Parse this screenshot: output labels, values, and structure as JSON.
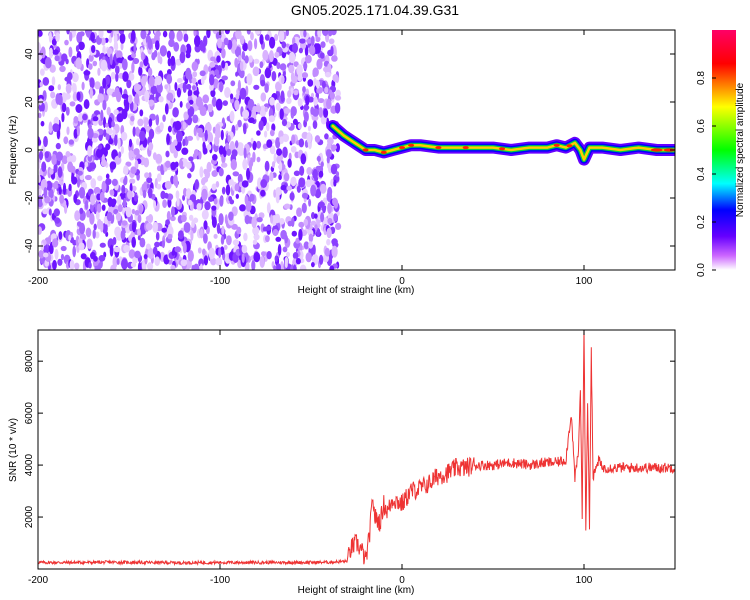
{
  "title": "GN05.2025.171.04.39.G31",
  "chart_data": [
    {
      "type": "heatmap",
      "title": "GN05.2025.171.04.39.G31",
      "xlabel": "Height of straight line (km)",
      "ylabel": "Frequency (Hz)",
      "xlim": [
        -200,
        150
      ],
      "ylim": [
        -50,
        50
      ],
      "x_ticks": [
        -200,
        -100,
        0,
        100
      ],
      "y_ticks": [
        -40,
        -20,
        0,
        20,
        40
      ],
      "noise_region_x": [
        -200,
        -35
      ],
      "ridge": {
        "x": [
          -38,
          -32,
          -28,
          -24,
          -20,
          -15,
          -10,
          -5,
          0,
          5,
          10,
          20,
          30,
          40,
          50,
          60,
          70,
          80,
          85,
          90,
          95,
          98,
          100,
          103,
          110,
          120,
          130,
          140,
          150
        ],
        "y": [
          10,
          6,
          4,
          2,
          0,
          0,
          -1,
          0,
          1,
          2,
          2,
          1,
          1,
          1,
          1,
          0,
          1,
          1,
          2,
          1,
          3,
          0,
          -4,
          1,
          1,
          0,
          1,
          0,
          0
        ]
      },
      "colorbar": {
        "label": "Normalized spectral amplitude",
        "range": [
          0.0,
          1.0
        ],
        "ticks": [
          0.0,
          0.2,
          0.4,
          0.6,
          0.8
        ],
        "tick_labels": [
          "0.0",
          "0.2",
          "0.4",
          "0.6",
          "0.8"
        ],
        "colors": [
          "#ffffff",
          "#cc66ff",
          "#6600ff",
          "#0000ff",
          "#00ffff",
          "#00ff00",
          "#ffff00",
          "#ff0000",
          "#ff0066"
        ]
      }
    },
    {
      "type": "line",
      "xlabel": "Height of straight line (km)",
      "ylabel": "SNR (10 * v/v)",
      "xlim": [
        -200,
        150
      ],
      "ylim": [
        0,
        9200
      ],
      "x_ticks": [
        -200,
        -100,
        0,
        100
      ],
      "y_ticks": [
        2000,
        4000,
        6000,
        8000
      ],
      "color": "#ee3333",
      "series": [
        {
          "x": [
            -200,
            -180,
            -160,
            -140,
            -120,
            -100,
            -80,
            -60,
            -40,
            -30,
            -28,
            -25,
            -22,
            -20,
            -18,
            -16,
            -15,
            -12,
            -10,
            -8,
            -5,
            0,
            5,
            10,
            15,
            20,
            25,
            30,
            35,
            40,
            50,
            60,
            70,
            80,
            85,
            90,
            93,
            95,
            97,
            98,
            99,
            100,
            101,
            102,
            103,
            104,
            105,
            108,
            110,
            120,
            130,
            140,
            150
          ],
          "y": [
            250,
            250,
            260,
            250,
            240,
            250,
            250,
            250,
            260,
            300,
            800,
            1000,
            700,
            300,
            1200,
            2800,
            2000,
            1800,
            2500,
            2200,
            2700,
            2500,
            3000,
            3100,
            3300,
            3600,
            3700,
            3900,
            3900,
            4000,
            4000,
            4100,
            4000,
            4100,
            4100,
            4200,
            6000,
            3500,
            4500,
            7000,
            2000,
            9100,
            1500,
            6500,
            1500,
            8500,
            3500,
            4200,
            3900,
            3900,
            3900,
            3900,
            3900
          ]
        }
      ]
    }
  ]
}
